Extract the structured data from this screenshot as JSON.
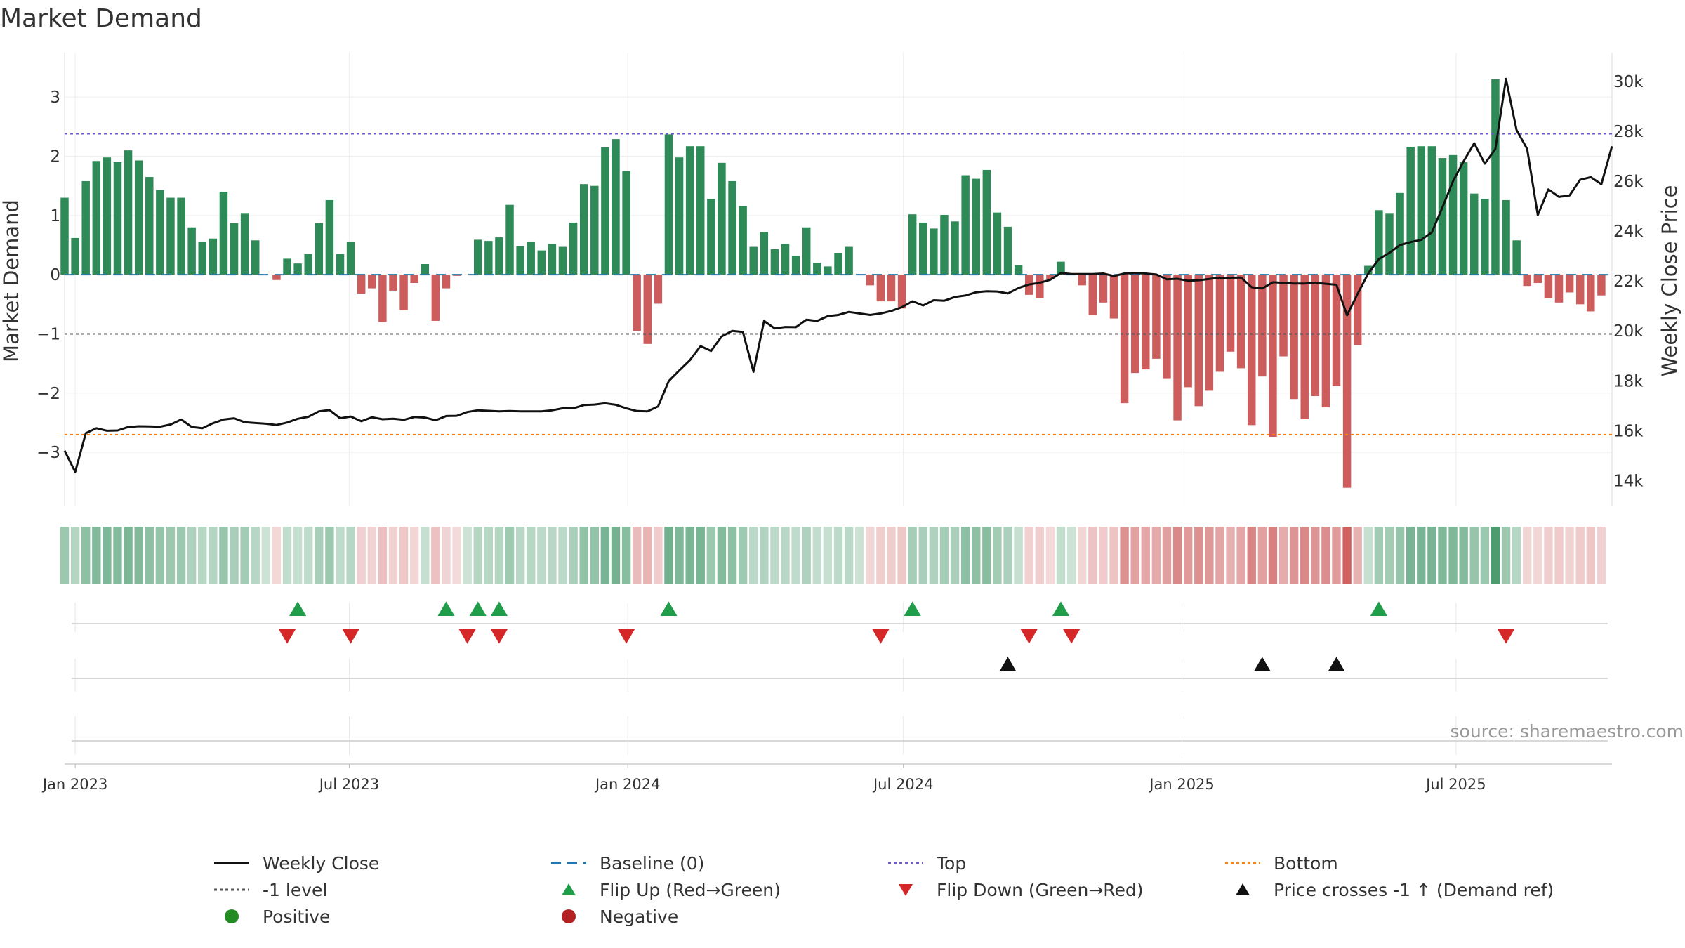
{
  "chart_data": {
    "type": "bar",
    "title": "Market Demand",
    "ylabel_left": "Market Demand",
    "ylabel_right": "Weekly Close Price",
    "source": "source: sharemaestro.com",
    "ylim_left": [
      -3.9,
      3.75
    ],
    "ylim_right": [
      13000,
      31150
    ],
    "yticks_left": [
      -3,
      -2,
      -1,
      0,
      1,
      2,
      3
    ],
    "yticks_left_labels": [
      "−3",
      "−2",
      "−1",
      "0",
      "1",
      "2",
      "3"
    ],
    "yticks_right": [
      14000,
      16000,
      18000,
      20000,
      22000,
      24000,
      26000,
      28000,
      30000
    ],
    "yticks_right_labels": [
      "14k",
      "16k",
      "18k",
      "20k",
      "22k",
      "24k",
      "26k",
      "28k",
      "30k"
    ],
    "date_range": [
      "2022-12-25",
      "2025-10-12"
    ],
    "xticks": [
      {
        "date": "2023-01-01",
        "label": "Jan 2023"
      },
      {
        "date": "2023-07-01",
        "label": "Jul 2023"
      },
      {
        "date": "2024-01-01",
        "label": "Jan 2024"
      },
      {
        "date": "2024-07-01",
        "label": "Jul 2024"
      },
      {
        "date": "2025-01-01",
        "label": "Jan 2025"
      },
      {
        "date": "2025-07-01",
        "label": "Jul 2025"
      }
    ],
    "reference_lines": {
      "top": 2.38,
      "bottom": -2.7,
      "minus_one": -1,
      "baseline": 0
    },
    "week_start": "2022-12-25",
    "demand": [
      1.3,
      0.62,
      1.58,
      1.92,
      1.98,
      1.9,
      2.1,
      1.93,
      1.65,
      1.43,
      1.3,
      1.3,
      0.8,
      0.56,
      0.61,
      1.4,
      0.87,
      1.03,
      0.58,
      0.0,
      -0.09,
      0.27,
      0.19,
      0.35,
      0.87,
      1.26,
      0.35,
      0.56,
      -0.32,
      -0.23,
      -0.8,
      -0.27,
      -0.6,
      -0.14,
      0.18,
      -0.78,
      -0.23,
      -0.02,
      0.0,
      0.59,
      0.57,
      0.63,
      1.18,
      0.48,
      0.56,
      0.41,
      0.52,
      0.47,
      0.88,
      1.53,
      1.5,
      2.15,
      2.29,
      1.75,
      -0.95,
      -1.17,
      -0.49,
      2.37,
      1.98,
      2.17,
      2.17,
      1.28,
      1.89,
      1.58,
      1.16,
      0.47,
      0.72,
      0.43,
      0.52,
      0.32,
      0.8,
      0.2,
      0.14,
      0.37,
      0.47,
      0.0,
      -0.18,
      -0.45,
      -0.45,
      -0.57,
      1.02,
      0.88,
      0.78,
      1.01,
      0.9,
      1.68,
      1.62,
      1.77,
      1.05,
      0.81,
      0.16,
      -0.34,
      -0.4,
      -0.07,
      0.22,
      0.0,
      -0.18,
      -0.68,
      -0.47,
      -0.74,
      -2.17,
      -1.66,
      -1.6,
      -1.42,
      -1.76,
      -2.46,
      -1.9,
      -2.22,
      -1.96,
      -1.64,
      -1.3,
      -1.58,
      -2.54,
      -1.72,
      -2.74,
      -1.38,
      -2.1,
      -2.44,
      -2.05,
      -2.24,
      -1.88,
      -3.6,
      -1.19,
      0.15,
      1.09,
      1.03,
      1.38,
      2.16,
      2.17,
      2.17,
      1.97,
      2.02,
      1.9,
      1.37,
      1.28,
      3.3,
      1.26,
      0.58,
      -0.19,
      -0.14,
      -0.4,
      -0.47,
      -0.3,
      -0.5,
      -0.62,
      -0.35
    ],
    "weekly_close": [
      15200,
      14350,
      15900,
      16100,
      16000,
      16010,
      16150,
      16180,
      16170,
      16160,
      16250,
      16450,
      16150,
      16100,
      16300,
      16450,
      16500,
      16340,
      16310,
      16280,
      16230,
      16330,
      16480,
      16560,
      16780,
      16830,
      16500,
      16570,
      16380,
      16540,
      16460,
      16480,
      16440,
      16550,
      16530,
      16420,
      16590,
      16600,
      16750,
      16820,
      16800,
      16780,
      16790,
      16780,
      16780,
      16780,
      16820,
      16900,
      16900,
      17030,
      17050,
      17100,
      17040,
      16900,
      16790,
      16780,
      16980,
      17990,
      18420,
      18830,
      19390,
      19200,
      19780,
      20000,
      19960,
      18360,
      20400,
      20100,
      20160,
      20150,
      20450,
      20400,
      20590,
      20640,
      20760,
      20700,
      20640,
      20700,
      20800,
      20950,
      21190,
      21020,
      21230,
      21210,
      21360,
      21420,
      21550,
      21590,
      21580,
      21500,
      21720,
      21860,
      21930,
      22050,
      22320,
      22280,
      22280,
      22280,
      22300,
      22200,
      22300,
      22320,
      22300,
      22260,
      22070,
      22090,
      22010,
      22030,
      22080,
      22130,
      22130,
      22140,
      21750,
      21700,
      21950,
      21930,
      21900,
      21900,
      21930,
      21890,
      21850,
      20630,
      21490,
      22300,
      22880,
      23130,
      23440,
      23560,
      23650,
      23950,
      24950,
      26000,
      26800,
      27520,
      26700,
      27290,
      30100,
      28050,
      27290,
      24640,
      25670,
      25370,
      25430,
      26060,
      26160,
      25880,
      27400
    ],
    "flip_up_dates": [
      "2023-05-28",
      "2023-09-03",
      "2023-09-24",
      "2023-10-08",
      "2024-01-28",
      "2024-07-07",
      "2024-10-13",
      "2025-05-11"
    ],
    "flip_down_dates": [
      "2023-05-21",
      "2023-07-02",
      "2023-09-17",
      "2023-10-08",
      "2023-12-31",
      "2024-06-16",
      "2024-09-22",
      "2024-10-20",
      "2025-08-03"
    ],
    "cross_up_dates": [
      "2024-09-08",
      "2025-02-23",
      "2025-04-13"
    ],
    "colors": {
      "positive_bar": "#2e8b57",
      "negative_bar": "#cd5c5c",
      "weekly_close": "#111111",
      "baseline": "#1f77b4",
      "top": "#6a5acd",
      "bottom": "#ff7f0e",
      "minus_one": "#555555",
      "flip_up": "#1f9d48",
      "flip_down": "#d62728",
      "cross": "#111111",
      "positive_dot": "#228b22",
      "negative_dot": "#b22222"
    },
    "legend": [
      {
        "label": "Weekly Close",
        "kind": "solid-line",
        "color": "#111111"
      },
      {
        "label": "Baseline (0)",
        "kind": "dashed-line",
        "color": "#1f77b4"
      },
      {
        "label": "Top",
        "kind": "dotted-line",
        "color": "#6a5acd"
      },
      {
        "label": "Bottom",
        "kind": "dotted-line",
        "color": "#ff7f0e"
      },
      {
        "label": "-1 level",
        "kind": "dotted-line",
        "color": "#555555"
      },
      {
        "label": "Flip Up (Red→Green)",
        "kind": "triangle-up",
        "color": "#1f9d48"
      },
      {
        "label": "Flip Down (Green→Red)",
        "kind": "triangle-down",
        "color": "#d62728"
      },
      {
        "label": "Price crosses -1 ↑ (Demand ref)",
        "kind": "triangle-up",
        "color": "#111111"
      },
      {
        "label": "Positive",
        "kind": "dot",
        "color": "#228b22"
      },
      {
        "label": "Negative",
        "kind": "dot",
        "color": "#b22222"
      }
    ]
  }
}
